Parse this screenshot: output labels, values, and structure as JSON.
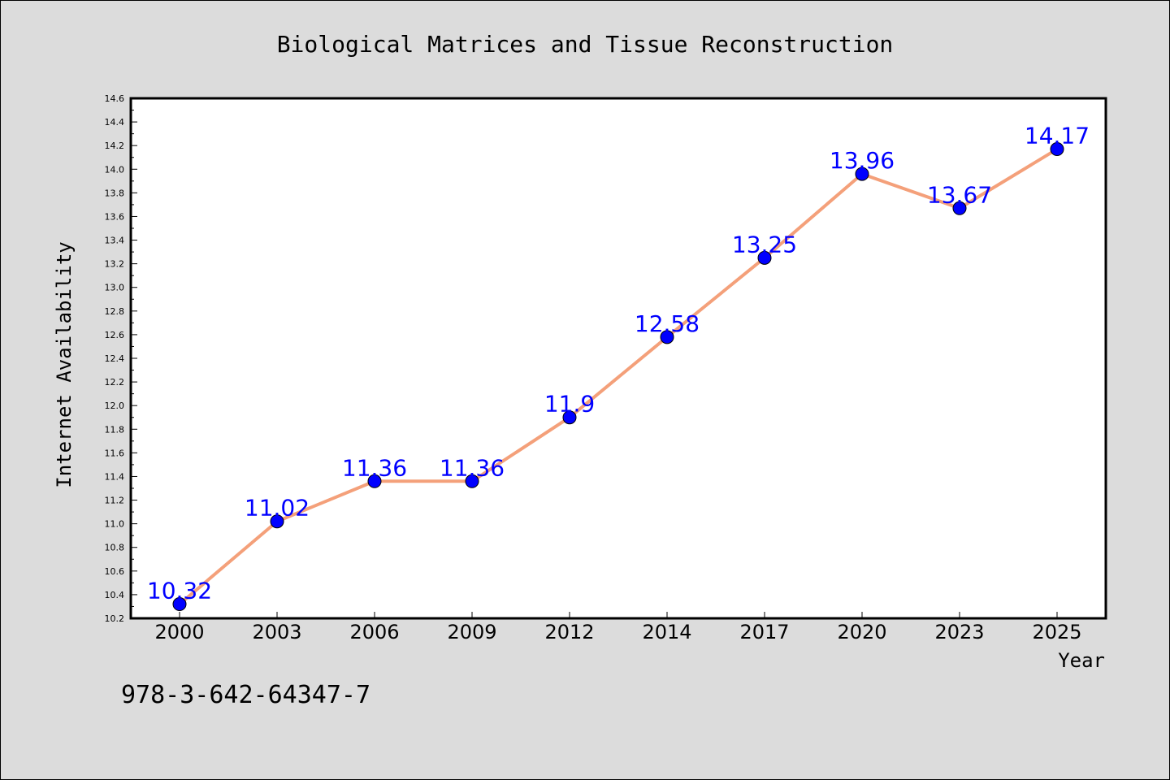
{
  "chart_data": {
    "type": "line",
    "title": "Biological Matrices and Tissue Reconstruction",
    "xlabel": "Year",
    "ylabel": "Internet Availability",
    "categories": [
      "2000",
      "2003",
      "2006",
      "2009",
      "2012",
      "2014",
      "2017",
      "2020",
      "2023",
      "2025"
    ],
    "values": [
      10.32,
      11.02,
      11.36,
      11.36,
      11.9,
      12.58,
      13.25,
      13.96,
      13.67,
      14.17
    ],
    "data_labels": [
      "10.32",
      "11.02",
      "11.36",
      "11.36",
      "11.9",
      "12.58",
      "13.25",
      "13.96",
      "13.67",
      "14.17"
    ],
    "ylim": [
      10.2,
      14.6
    ],
    "y_ticks": [
      "10.2",
      "10.4",
      "10.6",
      "10.8",
      "11.0",
      "11.2",
      "11.4",
      "11.6",
      "11.8",
      "12.0",
      "12.2",
      "12.4",
      "12.6",
      "12.8",
      "13.0",
      "13.2",
      "13.4",
      "13.6",
      "13.8",
      "14.0",
      "14.2",
      "14.4",
      "14.6"
    ],
    "grid": false,
    "legend": "none",
    "colors": {
      "line": "#f4a07a",
      "marker": "#0000ff",
      "label": "#0000ff",
      "background": "#dcdcdc",
      "plot_background": "#ffffff"
    }
  },
  "footer": {
    "isbn": "978-3-642-64347-7"
  }
}
